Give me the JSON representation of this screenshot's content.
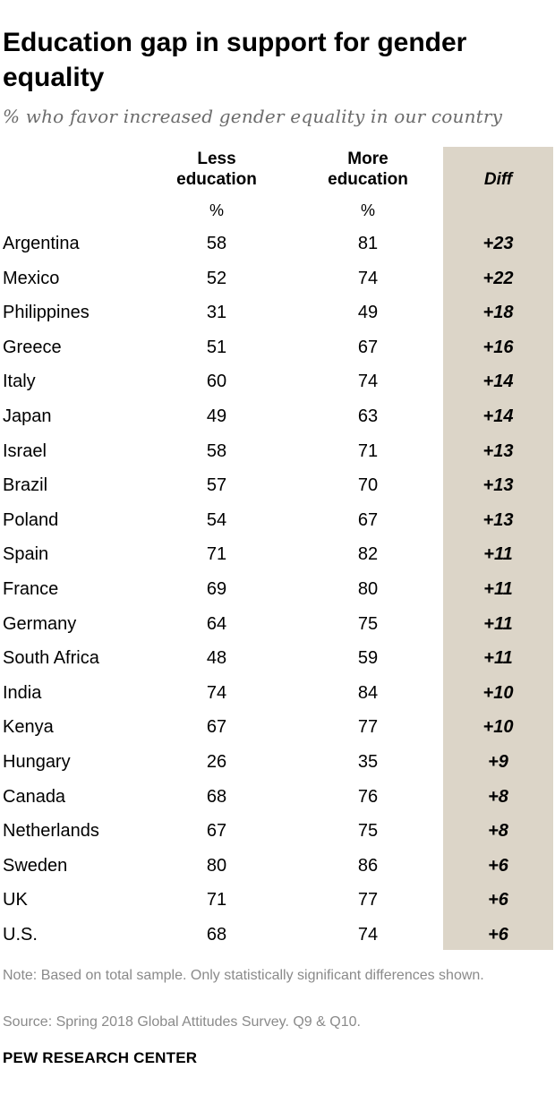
{
  "chart_data": {
    "type": "table",
    "title": "Education gap in support for gender equality",
    "subtitle": "% who favor increased gender equality in our country",
    "columns": [
      {
        "key": "less",
        "label_line1": "Less",
        "label_line2": "education",
        "unit": "%"
      },
      {
        "key": "more",
        "label_line1": "More",
        "label_line2": "education",
        "unit": "%"
      },
      {
        "key": "diff",
        "label": "Diff"
      }
    ],
    "rows": [
      {
        "country": "Argentina",
        "less": "58",
        "more": "81",
        "diff": "+23"
      },
      {
        "country": "Mexico",
        "less": "52",
        "more": "74",
        "diff": "+22"
      },
      {
        "country": "Philippines",
        "less": "31",
        "more": "49",
        "diff": "+18"
      },
      {
        "country": "Greece",
        "less": "51",
        "more": "67",
        "diff": "+16"
      },
      {
        "country": "Italy",
        "less": "60",
        "more": "74",
        "diff": "+14"
      },
      {
        "country": "Japan",
        "less": "49",
        "more": "63",
        "diff": "+14"
      },
      {
        "country": "Israel",
        "less": "58",
        "more": "71",
        "diff": "+13"
      },
      {
        "country": "Brazil",
        "less": "57",
        "more": "70",
        "diff": "+13"
      },
      {
        "country": "Poland",
        "less": "54",
        "more": "67",
        "diff": "+13"
      },
      {
        "country": "Spain",
        "less": "71",
        "more": "82",
        "diff": "+11"
      },
      {
        "country": "France",
        "less": "69",
        "more": "80",
        "diff": "+11"
      },
      {
        "country": "Germany",
        "less": "64",
        "more": "75",
        "diff": "+11"
      },
      {
        "country": "South Africa",
        "less": "48",
        "more": "59",
        "diff": "+11"
      },
      {
        "country": "India",
        "less": "74",
        "more": "84",
        "diff": "+10"
      },
      {
        "country": "Kenya",
        "less": "67",
        "more": "77",
        "diff": "+10"
      },
      {
        "country": "Hungary",
        "less": "26",
        "more": "35",
        "diff": "+9"
      },
      {
        "country": "Canada",
        "less": "68",
        "more": "76",
        "diff": "+8"
      },
      {
        "country": "Netherlands",
        "less": "67",
        "more": "75",
        "diff": "+8"
      },
      {
        "country": "Sweden",
        "less": "80",
        "more": "86",
        "diff": "+6"
      },
      {
        "country": "UK",
        "less": "71",
        "more": "77",
        "diff": "+6"
      },
      {
        "country": "U.S.",
        "less": "68",
        "more": "74",
        "diff": "+6"
      }
    ]
  },
  "footer": {
    "note": "Note: Based on total sample. Only statistically significant differences shown.",
    "source": "Source: Spring 2018 Global Attitudes Survey. Q9 & Q10.",
    "brand": "PEW RESEARCH CENTER"
  },
  "colors": {
    "diff_band": "#dcd5c8",
    "footer_text": "#8a8a8a",
    "subtitle_text": "#6b6b6b"
  }
}
